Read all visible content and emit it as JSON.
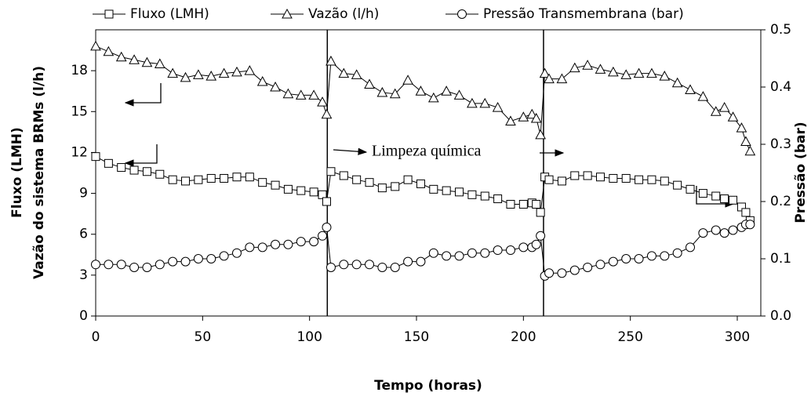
{
  "chart_data": {
    "type": "line",
    "legend": "top",
    "x": [
      0,
      6,
      12,
      18,
      24,
      30,
      36,
      42,
      48,
      54,
      60,
      66,
      72,
      78,
      84,
      90,
      96,
      102,
      106,
      108,
      110,
      116,
      122,
      128,
      134,
      140,
      146,
      152,
      158,
      164,
      170,
      176,
      182,
      188,
      194,
      200,
      204,
      206,
      208,
      210,
      212,
      218,
      224,
      230,
      236,
      242,
      248,
      254,
      260,
      266,
      272,
      278,
      284,
      290,
      294,
      298,
      302,
      304,
      306
    ],
    "series": [
      {
        "name": "Fluxo (LMH)",
        "color": "#000000",
        "marker": "square",
        "values": [
          11.7,
          11.2,
          10.9,
          10.7,
          10.6,
          10.4,
          10.0,
          9.9,
          10.0,
          10.1,
          10.1,
          10.2,
          10.2,
          9.8,
          9.6,
          9.3,
          9.2,
          9.1,
          8.9,
          8.4,
          10.6,
          10.3,
          10.0,
          9.8,
          9.4,
          9.5,
          10.0,
          9.7,
          9.3,
          9.2,
          9.1,
          8.9,
          8.8,
          8.6,
          8.2,
          8.2,
          8.3,
          8.2,
          7.6,
          10.2,
          10.0,
          9.9,
          10.3,
          10.3,
          10.2,
          10.1,
          10.1,
          10.0,
          10.0,
          9.9,
          9.6,
          9.3,
          9.0,
          8.8,
          8.6,
          8.5,
          8.0,
          7.6,
          7.0
        ]
      },
      {
        "name": "Vazão  (l/h)",
        "color": "#000000",
        "marker": "triangle",
        "values": [
          19.8,
          19.4,
          19.0,
          18.8,
          18.6,
          18.5,
          17.8,
          17.5,
          17.7,
          17.6,
          17.8,
          17.9,
          18.0,
          17.2,
          16.8,
          16.3,
          16.2,
          16.2,
          15.7,
          14.8,
          18.7,
          17.8,
          17.7,
          17.0,
          16.4,
          16.3,
          17.3,
          16.5,
          16.0,
          16.5,
          16.2,
          15.6,
          15.6,
          15.3,
          14.3,
          14.6,
          14.8,
          14.5,
          13.3,
          17.8,
          17.4,
          17.4,
          18.2,
          18.4,
          18.1,
          17.9,
          17.7,
          17.8,
          17.8,
          17.6,
          17.1,
          16.6,
          16.1,
          15.0,
          15.3,
          14.6,
          13.8,
          12.8,
          12.1
        ]
      },
      {
        "name": "Pressão Transmembrana  (bar)",
        "color": "#000000",
        "marker": "circle",
        "axis": "y2",
        "values": [
          0.09,
          0.09,
          0.09,
          0.085,
          0.085,
          0.09,
          0.095,
          0.095,
          0.1,
          0.1,
          0.105,
          0.11,
          0.12,
          0.12,
          0.125,
          0.125,
          0.13,
          0.13,
          0.14,
          0.155,
          0.085,
          0.09,
          0.09,
          0.09,
          0.085,
          0.085,
          0.095,
          0.095,
          0.11,
          0.105,
          0.105,
          0.11,
          0.11,
          0.115,
          0.115,
          0.12,
          0.12,
          0.125,
          0.14,
          0.07,
          0.075,
          0.075,
          0.08,
          0.085,
          0.09,
          0.095,
          0.1,
          0.1,
          0.105,
          0.105,
          0.11,
          0.12,
          0.145,
          0.15,
          0.145,
          0.15,
          0.155,
          0.16,
          0.16
        ]
      }
    ],
    "xlabel": "Tempo (horas)",
    "ylabel": [
      "Fluxo (LMH)",
      "Vazão  do sistema BRMs  (l/h)"
    ],
    "y2label": "Pressão (bar)",
    "xlim": [
      0,
      311
    ],
    "xticks": [
      0,
      50,
      100,
      150,
      200,
      250,
      300
    ],
    "ylim": [
      0,
      21
    ],
    "yticks": [
      0,
      3,
      6,
      9,
      12,
      15,
      18
    ],
    "y2lim": [
      0,
      0.5
    ],
    "y2ticks": [
      {
        "value": 0,
        "label": "0.0"
      },
      0.1,
      0.2,
      0.3,
      0.4,
      0.5
    ],
    "cleaning_x": [
      108.3,
      209.4
    ],
    "annotation": "Limpeza química",
    "grid": false
  }
}
